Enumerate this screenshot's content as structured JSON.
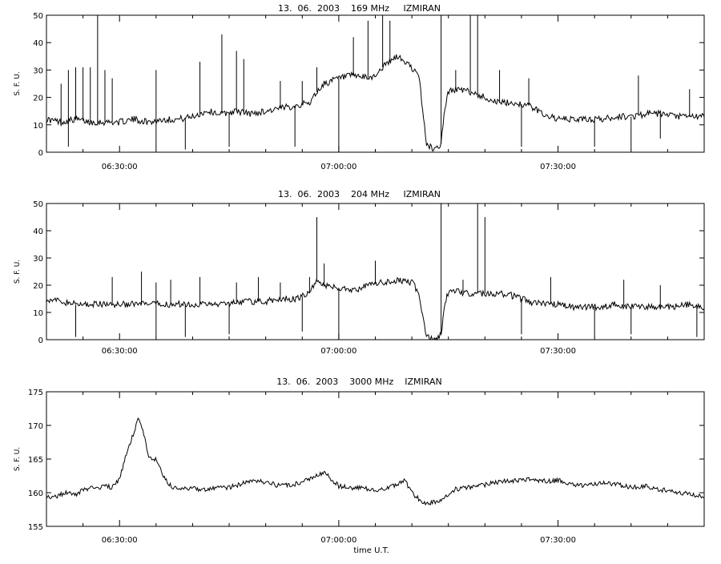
{
  "chart_data": [
    {
      "type": "line",
      "title": "13.  06.  2003    169 MHz     IZMIRAN",
      "ylabel": "S. F. U.",
      "xlabel": "",
      "x_range": [
        "06:20:00",
        "07:50:00"
      ],
      "ylim": [
        0,
        50
      ],
      "yticks": [
        "0",
        "10",
        "20",
        "30",
        "40",
        "50"
      ],
      "xticks": [
        {
          "t": "06:30:00",
          "label": "06:30:00"
        },
        {
          "t": "07:00:00",
          "label": "07:00:00"
        },
        {
          "t": "07:30:00",
          "label": "07:30:00"
        }
      ],
      "series": [
        {
          "values": [
            [
              "06:20:00",
              12
            ],
            [
              "06:22:00",
              11
            ],
            [
              "06:24:00",
              12
            ],
            [
              "06:26:00",
              11
            ],
            [
              "06:28:00",
              11
            ],
            [
              "06:30:00",
              11
            ],
            [
              "06:32:00",
              12
            ],
            [
              "06:34:00",
              11
            ],
            [
              "06:36:00",
              12
            ],
            [
              "06:38:00",
              12
            ],
            [
              "06:40:00",
              13
            ],
            [
              "06:42:00",
              15
            ],
            [
              "06:44:00",
              14
            ],
            [
              "06:46:00",
              15
            ],
            [
              "06:48:00",
              14
            ],
            [
              "06:50:00",
              15
            ],
            [
              "06:52:00",
              16
            ],
            [
              "06:54:00",
              17
            ],
            [
              "06:56:00",
              18
            ],
            [
              "06:57:00",
              22
            ],
            [
              "06:58:00",
              25
            ],
            [
              "07:00:00",
              27
            ],
            [
              "07:02:00",
              28
            ],
            [
              "07:04:00",
              27
            ],
            [
              "07:05:00",
              28
            ],
            [
              "07:06:00",
              31
            ],
            [
              "07:07:00",
              33
            ],
            [
              "07:08:00",
              35
            ],
            [
              "07:09:00",
              33
            ],
            [
              "07:10:00",
              31
            ],
            [
              "07:11:00",
              27
            ],
            [
              "07:11:30",
              15
            ],
            [
              "07:12:00",
              3
            ],
            [
              "07:13:00",
              1
            ],
            [
              "07:14:00",
              3
            ],
            [
              "07:14:30",
              16
            ],
            [
              "07:15:00",
              22
            ],
            [
              "07:16:00",
              23
            ],
            [
              "07:18:00",
              22
            ],
            [
              "07:20:00",
              20
            ],
            [
              "07:22:00",
              18
            ],
            [
              "07:24:00",
              18
            ],
            [
              "07:26:00",
              17
            ],
            [
              "07:28:00",
              14
            ],
            [
              "07:30:00",
              12
            ],
            [
              "07:32:00",
              12
            ],
            [
              "07:34:00",
              12
            ],
            [
              "07:36:00",
              12
            ],
            [
              "07:38:00",
              13
            ],
            [
              "07:40:00",
              13
            ],
            [
              "07:42:00",
              14
            ],
            [
              "07:44:00",
              14
            ],
            [
              "07:46:00",
              13
            ],
            [
              "07:48:00",
              13
            ],
            [
              "07:50:00",
              13
            ]
          ],
          "spikes": [
            [
              "06:22:00",
              25
            ],
            [
              "06:23:00",
              30
            ],
            [
              "06:24:00",
              31
            ],
            [
              "06:25:00",
              31
            ],
            [
              "06:26:00",
              31
            ],
            [
              "06:27:00",
              50
            ],
            [
              "06:28:00",
              30
            ],
            [
              "06:29:00",
              27
            ],
            [
              "06:35:00",
              30
            ],
            [
              "06:41:00",
              33
            ],
            [
              "06:44:00",
              43
            ],
            [
              "06:46:00",
              37
            ],
            [
              "06:47:00",
              34
            ],
            [
              "06:52:00",
              26
            ],
            [
              "06:55:00",
              26
            ],
            [
              "06:57:00",
              31
            ],
            [
              "07:02:00",
              42
            ],
            [
              "07:04:00",
              48
            ],
            [
              "07:06:00",
              50
            ],
            [
              "07:07:00",
              48
            ],
            [
              "07:14:00",
              50
            ],
            [
              "07:16:00",
              30
            ],
            [
              "07:18:00",
              50
            ],
            [
              "07:19:00",
              50
            ],
            [
              "07:22:00",
              30
            ],
            [
              "07:26:00",
              27
            ],
            [
              "07:41:00",
              28
            ],
            [
              "07:48:00",
              23
            ]
          ],
          "dips": [
            [
              "06:23:00",
              2
            ],
            [
              "06:35:00",
              1
            ],
            [
              "06:39:00",
              1
            ],
            [
              "06:45:00",
              2
            ],
            [
              "06:54:00",
              2
            ],
            [
              "07:00:00",
              0
            ],
            [
              "07:25:00",
              2
            ],
            [
              "07:35:00",
              2
            ],
            [
              "07:40:00",
              1
            ],
            [
              "07:44:00",
              5
            ]
          ]
        }
      ]
    },
    {
      "type": "line",
      "title": "13.  06.  2003    204 MHz     IZMIRAN",
      "ylabel": "S. F. U.",
      "xlabel": "",
      "x_range": [
        "06:20:00",
        "07:50:00"
      ],
      "ylim": [
        0,
        50
      ],
      "yticks": [
        "0",
        "10",
        "20",
        "30",
        "40",
        "50"
      ],
      "xticks": [
        {
          "t": "06:30:00",
          "label": "06:30:00"
        },
        {
          "t": "07:00:00",
          "label": "07:00:00"
        },
        {
          "t": "07:30:00",
          "label": "07:30:00"
        }
      ],
      "series": [
        {
          "values": [
            [
              "06:20:00",
              15
            ],
            [
              "06:22:00",
              14
            ],
            [
              "06:24:00",
              13
            ],
            [
              "06:26:00",
              13
            ],
            [
              "06:28:00",
              13
            ],
            [
              "06:30:00",
              13
            ],
            [
              "06:32:00",
              13
            ],
            [
              "06:34:00",
              13
            ],
            [
              "06:36:00",
              13
            ],
            [
              "06:38:00",
              13
            ],
            [
              "06:40:00",
              13
            ],
            [
              "06:42:00",
              13
            ],
            [
              "06:44:00",
              13
            ],
            [
              "06:46:00",
              14
            ],
            [
              "06:48:00",
              14
            ],
            [
              "06:50:00",
              14
            ],
            [
              "06:52:00",
              15
            ],
            [
              "06:54:00",
              15
            ],
            [
              "06:56:00",
              17
            ],
            [
              "06:57:00",
              22
            ],
            [
              "06:58:00",
              20
            ],
            [
              "07:00:00",
              19
            ],
            [
              "07:02:00",
              18
            ],
            [
              "07:04:00",
              20
            ],
            [
              "07:06:00",
              21
            ],
            [
              "07:08:00",
              22
            ],
            [
              "07:10:00",
              21
            ],
            [
              "07:11:00",
              17
            ],
            [
              "07:11:30",
              8
            ],
            [
              "07:12:00",
              1
            ],
            [
              "07:13:00",
              0
            ],
            [
              "07:14:00",
              2
            ],
            [
              "07:14:30",
              12
            ],
            [
              "07:15:00",
              18
            ],
            [
              "07:18:00",
              17
            ],
            [
              "07:20:00",
              17
            ],
            [
              "07:22:00",
              17
            ],
            [
              "07:24:00",
              16
            ],
            [
              "07:26:00",
              14
            ],
            [
              "07:28:00",
              13
            ],
            [
              "07:30:00",
              13
            ],
            [
              "07:32:00",
              12
            ],
            [
              "07:34:00",
              12
            ],
            [
              "07:36:00",
              12
            ],
            [
              "07:38:00",
              13
            ],
            [
              "07:40:00",
              12
            ],
            [
              "07:42:00",
              12
            ],
            [
              "07:44:00",
              12
            ],
            [
              "07:46:00",
              12
            ],
            [
              "07:48:00",
              13
            ],
            [
              "07:50:00",
              12
            ]
          ],
          "spikes": [
            [
              "06:29:00",
              23
            ],
            [
              "06:33:00",
              25
            ],
            [
              "06:35:00",
              21
            ],
            [
              "06:37:00",
              22
            ],
            [
              "06:41:00",
              23
            ],
            [
              "06:46:00",
              21
            ],
            [
              "06:49:00",
              23
            ],
            [
              "06:52:00",
              21
            ],
            [
              "06:56:00",
              23
            ],
            [
              "06:57:00",
              45
            ],
            [
              "06:58:00",
              28
            ],
            [
              "07:05:00",
              29
            ],
            [
              "07:14:00",
              50
            ],
            [
              "07:17:00",
              22
            ],
            [
              "07:19:00",
              50
            ],
            [
              "07:20:00",
              45
            ],
            [
              "07:29:00",
              23
            ],
            [
              "07:39:00",
              22
            ],
            [
              "07:44:00",
              20
            ]
          ],
          "dips": [
            [
              "06:24:00",
              1
            ],
            [
              "06:35:00",
              1
            ],
            [
              "06:39:00",
              1
            ],
            [
              "06:45:00",
              2
            ],
            [
              "06:55:00",
              3
            ],
            [
              "07:00:00",
              0
            ],
            [
              "07:25:00",
              2
            ],
            [
              "07:35:00",
              1
            ],
            [
              "07:40:00",
              2
            ],
            [
              "07:49:00",
              1
            ]
          ]
        }
      ]
    },
    {
      "type": "line",
      "title": "13.  06.  2003    3000 MHz    IZMIRAN",
      "ylabel": "S. F. U.",
      "xlabel": "time  U.T.",
      "x_range": [
        "06:20:00",
        "07:50:00"
      ],
      "ylim": [
        155,
        175
      ],
      "yticks": [
        "155",
        "160",
        "165",
        "170",
        "175"
      ],
      "xticks": [
        {
          "t": "06:30:00",
          "label": "06:30:00"
        },
        {
          "t": "07:00:00",
          "label": "07:00:00"
        },
        {
          "t": "07:30:00",
          "label": "07:30:00"
        }
      ],
      "series": [
        {
          "values": [
            [
              "06:20:00",
              159.5
            ],
            [
              "06:21:00",
              159.3
            ],
            [
              "06:22:00",
              159.8
            ],
            [
              "06:23:00",
              160.0
            ],
            [
              "06:24:00",
              159.6
            ],
            [
              "06:25:00",
              160.4
            ],
            [
              "06:26:00",
              160.7
            ],
            [
              "06:27:00",
              160.6
            ],
            [
              "06:28:00",
              161.0
            ],
            [
              "06:29:00",
              160.8
            ],
            [
              "06:30:00",
              162.0
            ],
            [
              "06:31:00",
              166.0
            ],
            [
              "06:32:00",
              169.0
            ],
            [
              "06:32:30",
              171.0
            ],
            [
              "06:33:00",
              170.0
            ],
            [
              "06:34:00",
              165.5
            ],
            [
              "06:34:30",
              165.0
            ],
            [
              "06:35:00",
              165.0
            ],
            [
              "06:36:00",
              162.5
            ],
            [
              "06:37:00",
              161.0
            ],
            [
              "06:38:00",
              160.5
            ],
            [
              "06:40:00",
              160.6
            ],
            [
              "06:42:00",
              160.5
            ],
            [
              "06:44:00",
              160.7
            ],
            [
              "06:46:00",
              161.0
            ],
            [
              "06:48:00",
              161.8
            ],
            [
              "06:50:00",
              161.5
            ],
            [
              "06:52:00",
              161.0
            ],
            [
              "06:54:00",
              161.3
            ],
            [
              "06:56:00",
              162.0
            ],
            [
              "06:58:00",
              163.0
            ],
            [
              "07:00:00",
              161.0
            ],
            [
              "07:02:00",
              160.7
            ],
            [
              "07:04:00",
              160.6
            ],
            [
              "07:06:00",
              160.4
            ],
            [
              "07:08:00",
              161.2
            ],
            [
              "07:09:00",
              162.0
            ],
            [
              "07:10:00",
              160.0
            ],
            [
              "07:11:00",
              159.0
            ],
            [
              "07:12:00",
              158.2
            ],
            [
              "07:14:00",
              159.0
            ],
            [
              "07:16:00",
              160.5
            ],
            [
              "07:18:00",
              160.8
            ],
            [
              "07:20:00",
              161.2
            ],
            [
              "07:22:00",
              161.6
            ],
            [
              "07:24:00",
              161.8
            ],
            [
              "07:26:00",
              162.0
            ],
            [
              "07:28:00",
              161.7
            ],
            [
              "07:30:00",
              161.8
            ],
            [
              "07:32:00",
              161.2
            ],
            [
              "07:34:00",
              161.0
            ],
            [
              "07:36:00",
              161.5
            ],
            [
              "07:38:00",
              161.3
            ],
            [
              "07:40:00",
              160.8
            ],
            [
              "07:42:00",
              161.0
            ],
            [
              "07:44:00",
              160.5
            ],
            [
              "07:46:00",
              160.0
            ],
            [
              "07:48:00",
              159.8
            ],
            [
              "07:50:00",
              159.5
            ]
          ]
        }
      ]
    }
  ]
}
